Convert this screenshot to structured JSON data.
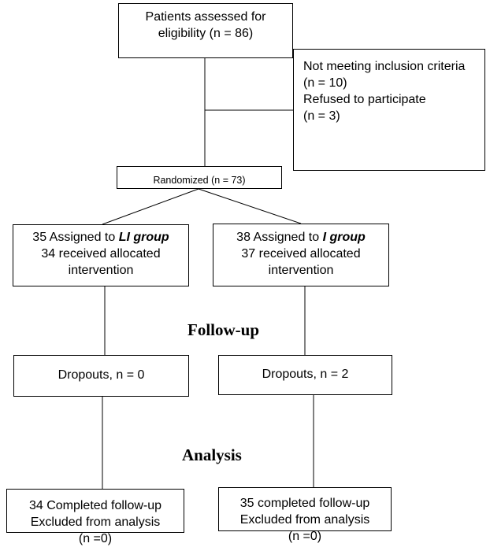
{
  "screening": {
    "line1": "Patients assessed for",
    "line2": "eligibility (n = 86)"
  },
  "exclusions": {
    "line1": "Not meeting inclusion criteria",
    "line2": "(n = 10)",
    "line3": "Refused to participate",
    "line4": "(n = 3)"
  },
  "randomized": {
    "label": "Randomized (n = 73)"
  },
  "arm_li": {
    "assigned_prefix": "35 Assigned to ",
    "group_name": "LI group",
    "line2": "34 received allocated",
    "line3": "intervention",
    "dropouts": "Dropouts, n = 0",
    "completed": "34 Completed follow-up",
    "excluded": "Excluded from analysis",
    "excluded_n": "(n =0)"
  },
  "arm_i": {
    "assigned_prefix": "38 Assigned to ",
    "group_name": "I group",
    "line2": "37 received allocated",
    "line3": "intervention",
    "dropouts": "Dropouts, n = 2",
    "completed": "35 completed follow-up",
    "excluded": "Excluded from analysis",
    "excluded_n": "(n =0)"
  },
  "stages": {
    "followup": "Follow-up",
    "analysis": "Analysis"
  }
}
